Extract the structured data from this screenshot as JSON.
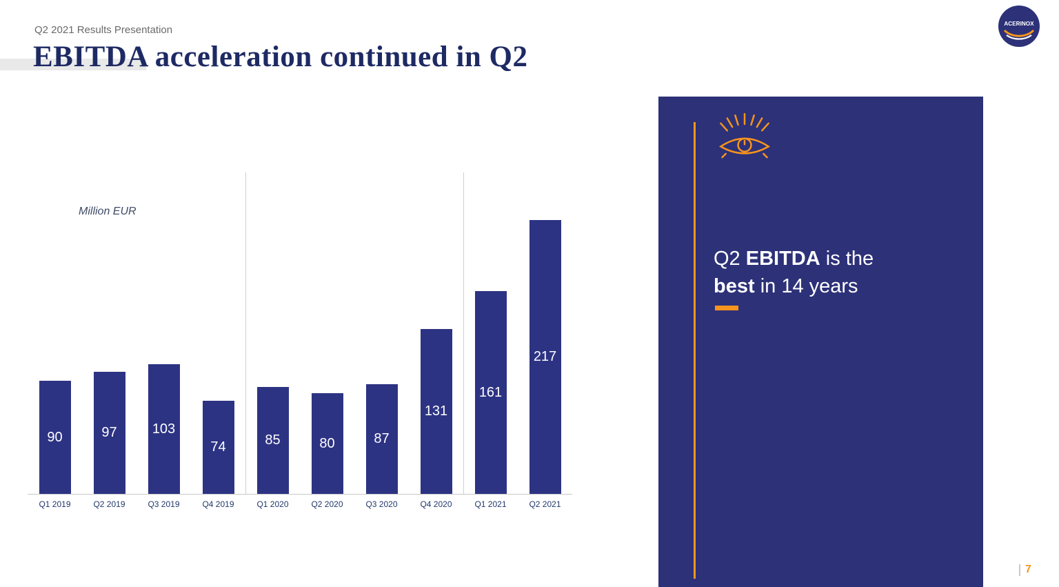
{
  "header": {
    "subtitle": "Q2 2021 Results Presentation",
    "title": "EBITDA acceleration continued in Q2"
  },
  "logo": {
    "text": "ACERINOX"
  },
  "colors": {
    "navy": "#2d3178",
    "bar": "#2d3383",
    "orange": "#f7941d",
    "title_navy": "#1e2a63"
  },
  "chart_data": {
    "type": "bar",
    "title": "",
    "unit_label": "Million EUR",
    "categories": [
      "Q1 2019",
      "Q2 2019",
      "Q3 2019",
      "Q4 2019",
      "Q1 2020",
      "Q2 2020",
      "Q3 2020",
      "Q4 2020",
      "Q1 2021",
      "Q2 2021"
    ],
    "values": [
      90,
      97,
      103,
      74,
      85,
      80,
      87,
      131,
      161,
      217
    ],
    "xlabel": "",
    "ylabel": "Million EUR",
    "ylim": [
      0,
      255
    ],
    "grid": false,
    "legend": "none",
    "bar_color": "#2d3383",
    "value_label_color": "#ffffff",
    "year_separators_after_index": [
      3,
      7
    ]
  },
  "panel": {
    "background": "#2d3178",
    "accent": "#f7941d",
    "line1": [
      {
        "text": "Q2 ",
        "bold": false
      },
      {
        "text": "EBITDA",
        "bold": true
      },
      {
        "text": " is the",
        "bold": false
      }
    ],
    "line2": [
      {
        "text": "best",
        "bold": true
      },
      {
        "text": " in 14 years",
        "bold": false
      }
    ]
  },
  "footer": {
    "page_number": "7"
  }
}
